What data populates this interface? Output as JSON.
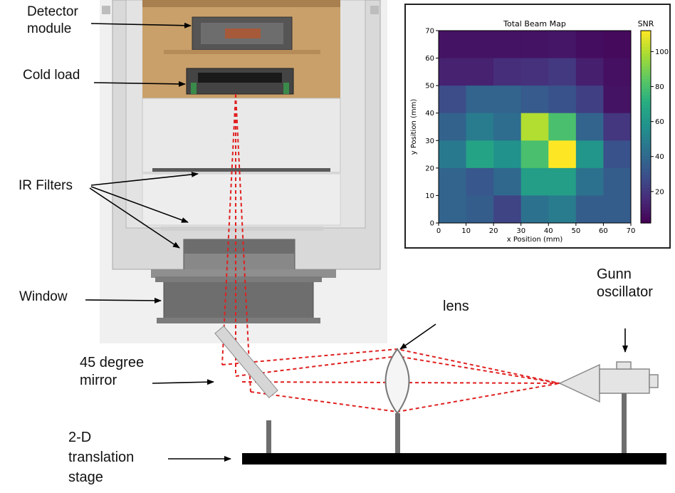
{
  "labels": {
    "detector_module": [
      "Detector",
      "module"
    ],
    "cold_load": "Cold load",
    "ir_filters": "IR Filters",
    "window": "Window",
    "lens": "lens",
    "gunn_oscillator": [
      "Gunn",
      "oscillator"
    ],
    "mirror": [
      "45 degree",
      "mirror"
    ],
    "translation_stage": [
      "2-D",
      "translation",
      "stage"
    ]
  },
  "colors": {
    "beam": "#e02020",
    "cryostat_gray": "#c8c8c8",
    "detector_copper": "#c9a06a",
    "stage_black": "#000000",
    "arrow": "#000000"
  },
  "chart_data": {
    "type": "heatmap",
    "title": "Total Beam Map",
    "xlabel": "x Position (mm)",
    "ylabel": "y Position (mm)",
    "colorbar_label": "SNR",
    "colormap": "viridis",
    "xlim": [
      0,
      70
    ],
    "ylim": [
      0,
      70
    ],
    "x_ticks": [
      0,
      10,
      20,
      30,
      40,
      50,
      60,
      70
    ],
    "y_ticks": [
      0,
      10,
      20,
      30,
      40,
      50,
      60,
      70
    ],
    "colorbar_ticks": [
      20,
      40,
      60,
      80,
      100
    ],
    "value_range": [
      2,
      112
    ],
    "x_edges": [
      0,
      10,
      20,
      30,
      40,
      50,
      60,
      70
    ],
    "y_edges": [
      0,
      10,
      20,
      30,
      40,
      50,
      60,
      70
    ],
    "values_top_row_first": [
      [
        8,
        8,
        8,
        8,
        9,
        6,
        5
      ],
      [
        13,
        13,
        17,
        18,
        21,
        12,
        7
      ],
      [
        28,
        38,
        38,
        34,
        30,
        23,
        8
      ],
      [
        37,
        48,
        42,
        100,
        80,
        38,
        20
      ],
      [
        47,
        67,
        58,
        80,
        112,
        60,
        30
      ],
      [
        38,
        32,
        40,
        64,
        64,
        44,
        35
      ],
      [
        38,
        35,
        25,
        44,
        48,
        35,
        35
      ]
    ]
  }
}
